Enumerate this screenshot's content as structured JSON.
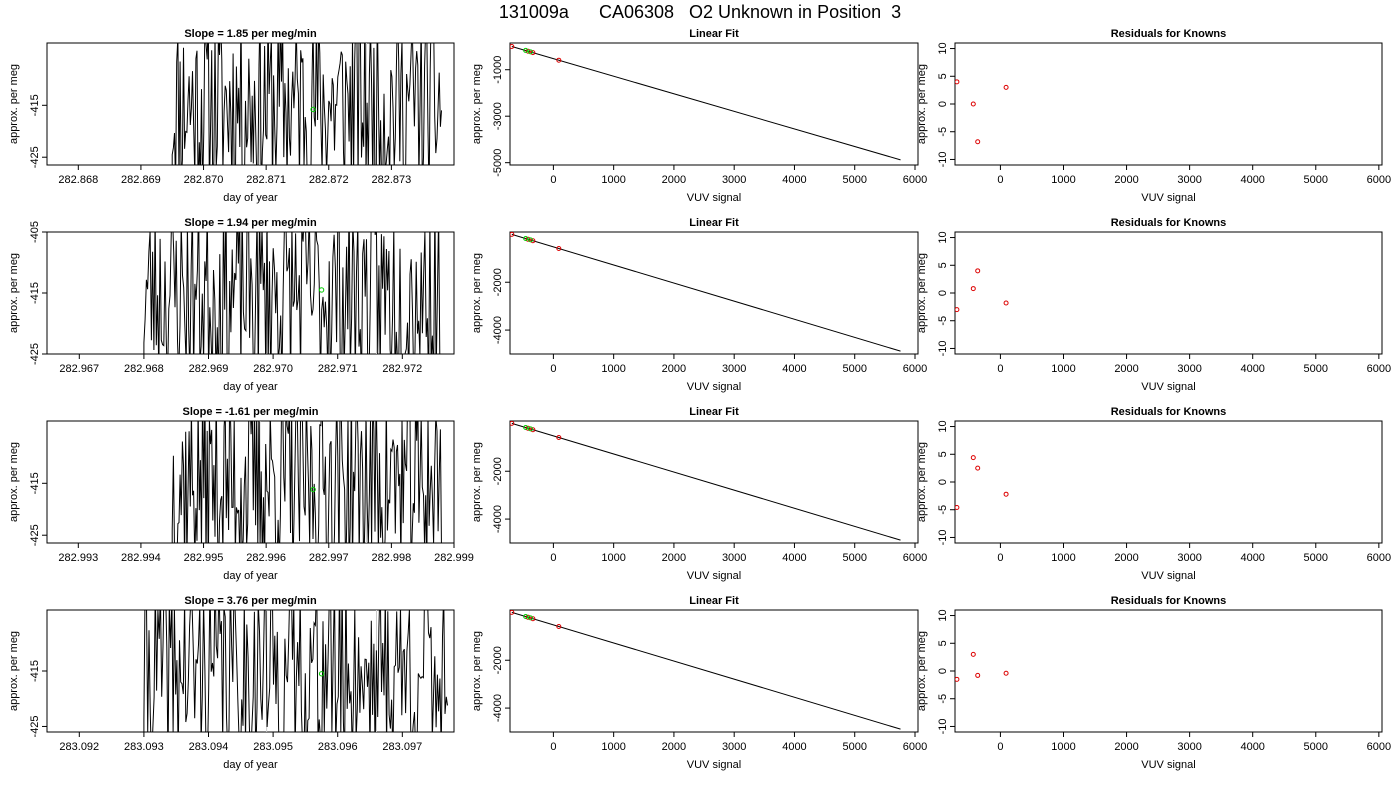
{
  "page": {
    "title": "131009a      CA06308   O2 Unknown in Position  3"
  },
  "chart_data": [
    {
      "type": "line",
      "panel": "slope",
      "title": "Slope =  1.85  per meg/min",
      "xlabel": "day of year",
      "ylabel": "approx. per meg",
      "xlim": [
        282.8675,
        282.874
      ],
      "ylim": [
        -426.5,
        -403
      ],
      "xticks": [
        "282.868",
        "282.869",
        "282.870",
        "282.871",
        "282.872",
        "282.873"
      ],
      "xtick_values": [
        282.868,
        282.869,
        282.87,
        282.871,
        282.872,
        282.873
      ],
      "yticks": [
        "-415",
        "-425"
      ],
      "ytick_values": [
        -415,
        -425
      ],
      "vlines": [
        282.8709,
        282.8726
      ],
      "series_x_range": [
        282.8695,
        282.8738
      ],
      "seed": 11,
      "marker": {
        "x": 282.87175,
        "y": -415.8,
        "color": "#00cc00"
      }
    },
    {
      "type": "scatter",
      "panel": "fit",
      "title": "Linear Fit",
      "xlabel": "VUV signal",
      "ylabel": "approx. per meg",
      "xlim": [
        -720,
        6050
      ],
      "ylim": [
        -5100,
        150
      ],
      "xticks": [
        "0",
        "1000",
        "2000",
        "3000",
        "4000",
        "5000",
        "6000"
      ],
      "xtick_values": [
        0,
        1000,
        2000,
        3000,
        4000,
        5000,
        6000
      ],
      "yticks": [
        "-1000",
        "-3000",
        "-5000"
      ],
      "ytick_values": [
        -1000,
        -3000,
        -5000
      ],
      "line": [
        [
          -690,
          0
        ],
        [
          5760,
          -4880
        ]
      ],
      "points_red": [
        [
          -690,
          0
        ],
        [
          -420,
          -205
        ],
        [
          -340,
          -265
        ],
        [
          90,
          -590
        ]
      ],
      "points_green": [
        [
          -460,
          -170
        ],
        [
          -380,
          -230
        ]
      ]
    },
    {
      "type": "scatter",
      "panel": "residual",
      "title": "Residuals for Knowns",
      "xlabel": "VUV signal",
      "ylabel": "approx. per meg",
      "xlim": [
        -720,
        6050
      ],
      "ylim": [
        -11,
        11
      ],
      "xticks": [
        "0",
        "1000",
        "2000",
        "3000",
        "4000",
        "5000",
        "6000"
      ],
      "xtick_values": [
        0,
        1000,
        2000,
        3000,
        4000,
        5000,
        6000
      ],
      "yticks": [
        "10",
        "5",
        "0",
        "-5",
        "-10"
      ],
      "ytick_values": [
        10,
        5,
        0,
        -5,
        -10
      ],
      "points": [
        [
          -690,
          4
        ],
        [
          -430,
          0
        ],
        [
          -360,
          -6.8
        ],
        [
          90,
          3
        ]
      ]
    },
    {
      "type": "line",
      "panel": "slope",
      "title": "Slope =  1.94  per meg/min",
      "xlabel": "day of year",
      "ylabel": "approx. per meg",
      "xlim": [
        282.9665,
        282.9728
      ],
      "ylim": [
        -425,
        -405
      ],
      "xticks": [
        "282.967",
        "282.968",
        "282.969",
        "282.970",
        "282.971",
        "282.972"
      ],
      "xtick_values": [
        282.967,
        282.968,
        282.969,
        282.97,
        282.971,
        282.972
      ],
      "yticks": [
        "-405",
        "-415",
        "-425"
      ],
      "ytick_values": [
        -405,
        -415,
        -425
      ],
      "vlines": [
        282.9699,
        282.9716
      ],
      "series_x_range": [
        282.968,
        282.9726
      ],
      "seed": 23,
      "marker": {
        "x": 282.97075,
        "y": -414.5,
        "color": "#00cc00"
      }
    },
    {
      "type": "scatter",
      "panel": "fit",
      "title": "Linear Fit",
      "xlabel": "VUV signal",
      "ylabel": "approx. per meg",
      "xlim": [
        -720,
        6050
      ],
      "ylim": [
        -5000,
        100
      ],
      "xticks": [
        "0",
        "1000",
        "2000",
        "3000",
        "4000",
        "5000",
        "6000"
      ],
      "xtick_values": [
        0,
        1000,
        2000,
        3000,
        4000,
        5000,
        6000
      ],
      "yticks": [
        "-2000",
        "-4000"
      ],
      "ytick_values": [
        -2000,
        -4000
      ],
      "line": [
        [
          -690,
          0
        ],
        [
          5760,
          -4880
        ]
      ],
      "points_red": [
        [
          -690,
          0
        ],
        [
          -420,
          -205
        ],
        [
          -340,
          -265
        ],
        [
          90,
          -590
        ]
      ],
      "points_green": [
        [
          -460,
          -170
        ],
        [
          -380,
          -230
        ]
      ]
    },
    {
      "type": "scatter",
      "panel": "residual",
      "title": "Residuals for Knowns",
      "xlabel": "VUV signal",
      "ylabel": "approx. per meg",
      "xlim": [
        -720,
        6050
      ],
      "ylim": [
        -11,
        11
      ],
      "xticks": [
        "0",
        "1000",
        "2000",
        "3000",
        "4000",
        "5000",
        "6000"
      ],
      "xtick_values": [
        0,
        1000,
        2000,
        3000,
        4000,
        5000,
        6000
      ],
      "yticks": [
        "10",
        "5",
        "0",
        "-5",
        "-10"
      ],
      "ytick_values": [
        10,
        5,
        0,
        -5,
        -10
      ],
      "points": [
        [
          -690,
          -3
        ],
        [
          -430,
          0.8
        ],
        [
          -360,
          4
        ],
        [
          90,
          -1.8
        ]
      ]
    },
    {
      "type": "line",
      "panel": "slope",
      "title": "Slope =  -1.61  per meg/min",
      "xlabel": "day of year",
      "ylabel": "approx. per meg",
      "xlim": [
        282.9925,
        282.999
      ],
      "ylim": [
        -426.5,
        -403
      ],
      "xticks": [
        "282.993",
        "282.994",
        "282.995",
        "282.996",
        "282.997",
        "282.998",
        "282.999"
      ],
      "xtick_values": [
        282.993,
        282.994,
        282.995,
        282.996,
        282.997,
        282.998,
        282.999
      ],
      "yticks": [
        "-415",
        "-425"
      ],
      "ytick_values": [
        -415,
        -425
      ],
      "vlines": [
        282.9959,
        282.9976
      ],
      "series_x_range": [
        282.9945,
        282.9988
      ],
      "seed": 37,
      "marker": {
        "x": 282.99675,
        "y": -416.2,
        "color": "#00cc00"
      }
    },
    {
      "type": "scatter",
      "panel": "fit",
      "title": "Linear Fit",
      "xlabel": "VUV signal",
      "ylabel": "approx. per meg",
      "xlim": [
        -720,
        6050
      ],
      "ylim": [
        -5000,
        100
      ],
      "xticks": [
        "0",
        "1000",
        "2000",
        "3000",
        "4000",
        "5000",
        "6000"
      ],
      "xtick_values": [
        0,
        1000,
        2000,
        3000,
        4000,
        5000,
        6000
      ],
      "yticks": [
        "-2000",
        "-4000"
      ],
      "ytick_values": [
        -2000,
        -4000
      ],
      "line": [
        [
          -690,
          0
        ],
        [
          5760,
          -4880
        ]
      ],
      "points_red": [
        [
          -690,
          0
        ],
        [
          -420,
          -205
        ],
        [
          -340,
          -265
        ],
        [
          90,
          -590
        ]
      ],
      "points_green": [
        [
          -460,
          -170
        ],
        [
          -380,
          -230
        ]
      ]
    },
    {
      "type": "scatter",
      "panel": "residual",
      "title": "Residuals for Knowns",
      "xlabel": "VUV signal",
      "ylabel": "approx. per meg",
      "xlim": [
        -720,
        6050
      ],
      "ylim": [
        -11,
        11
      ],
      "xticks": [
        "0",
        "1000",
        "2000",
        "3000",
        "4000",
        "5000",
        "6000"
      ],
      "xtick_values": [
        0,
        1000,
        2000,
        3000,
        4000,
        5000,
        6000
      ],
      "yticks": [
        "10",
        "5",
        "0",
        "-5",
        "-10"
      ],
      "ytick_values": [
        10,
        5,
        0,
        -5,
        -10
      ],
      "points": [
        [
          -690,
          -4.6
        ],
        [
          -430,
          4.4
        ],
        [
          -360,
          2.5
        ],
        [
          90,
          -2.2
        ]
      ]
    },
    {
      "type": "line",
      "panel": "slope",
      "title": "Slope =  3.76  per meg/min",
      "xlabel": "day of year",
      "ylabel": "approx. per meg",
      "xlim": [
        283.0915,
        283.0978
      ],
      "ylim": [
        -426,
        -404
      ],
      "xticks": [
        "283.092",
        "283.093",
        "283.094",
        "283.095",
        "283.096",
        "283.097"
      ],
      "xtick_values": [
        283.092,
        283.093,
        283.094,
        283.095,
        283.096,
        283.097
      ],
      "yticks": [
        "-415",
        "-425"
      ],
      "ytick_values": [
        -415,
        -425
      ],
      "vlines": [
        283.0949,
        283.0966
      ],
      "series_x_range": [
        283.093,
        283.0977
      ],
      "seed": 41,
      "marker": {
        "x": 283.09575,
        "y": -415.5,
        "color": "#00cc00"
      }
    },
    {
      "type": "scatter",
      "panel": "fit",
      "title": "Linear Fit",
      "xlabel": "VUV signal",
      "ylabel": "approx. per meg",
      "xlim": [
        -720,
        6050
      ],
      "ylim": [
        -5000,
        100
      ],
      "xticks": [
        "0",
        "1000",
        "2000",
        "3000",
        "4000",
        "5000",
        "6000"
      ],
      "xtick_values": [
        0,
        1000,
        2000,
        3000,
        4000,
        5000,
        6000
      ],
      "yticks": [
        "-2000",
        "-4000"
      ],
      "ytick_values": [
        -2000,
        -4000
      ],
      "line": [
        [
          -690,
          0
        ],
        [
          5760,
          -4880
        ]
      ],
      "points_red": [
        [
          -690,
          0
        ],
        [
          -420,
          -205
        ],
        [
          -340,
          -265
        ],
        [
          90,
          -590
        ]
      ],
      "points_green": [
        [
          -460,
          -170
        ],
        [
          -380,
          -230
        ]
      ]
    },
    {
      "type": "scatter",
      "panel": "residual",
      "title": "Residuals for Knowns",
      "xlabel": "VUV signal",
      "ylabel": "approx. per meg",
      "xlim": [
        -720,
        6050
      ],
      "ylim": [
        -11,
        11
      ],
      "xticks": [
        "0",
        "1000",
        "2000",
        "3000",
        "4000",
        "5000",
        "6000"
      ],
      "xtick_values": [
        0,
        1000,
        2000,
        3000,
        4000,
        5000,
        6000
      ],
      "yticks": [
        "10",
        "5",
        "0",
        "-5",
        "-10"
      ],
      "ytick_values": [
        10,
        5,
        0,
        -5,
        -10
      ],
      "points": [
        [
          -690,
          -1.5
        ],
        [
          -430,
          3
        ],
        [
          -360,
          -0.8
        ],
        [
          90,
          -0.4
        ]
      ]
    }
  ]
}
